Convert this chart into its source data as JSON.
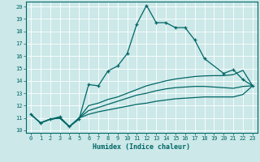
{
  "xlabel": "Humidex (Indice chaleur)",
  "bg_color": "#cce8e8",
  "line_color": "#006666",
  "grid_color": "#ffffff",
  "xlim": [
    -0.5,
    23.5
  ],
  "ylim": [
    9.8,
    20.4
  ],
  "yticks": [
    10,
    11,
    12,
    13,
    14,
    15,
    16,
    17,
    18,
    19,
    20
  ],
  "xticks": [
    0,
    1,
    2,
    3,
    4,
    5,
    6,
    7,
    8,
    9,
    10,
    11,
    12,
    13,
    14,
    15,
    16,
    17,
    18,
    19,
    20,
    21,
    22,
    23
  ],
  "line1_x": [
    0,
    1,
    2,
    3,
    4,
    5,
    6,
    7,
    8,
    9,
    10,
    11,
    12,
    13,
    14,
    15,
    16,
    17,
    18,
    20,
    21,
    22,
    23
  ],
  "line1_y": [
    11.3,
    10.6,
    10.9,
    11.1,
    10.3,
    10.9,
    13.7,
    13.6,
    14.8,
    15.2,
    16.2,
    18.6,
    20.1,
    18.7,
    18.7,
    18.3,
    18.3,
    17.3,
    15.8,
    14.6,
    14.9,
    14.1,
    13.6
  ],
  "line2_x": [
    0,
    1,
    2,
    3,
    4,
    5,
    6,
    7,
    8,
    9,
    10,
    11,
    12,
    13,
    14,
    15,
    16,
    17,
    18,
    19,
    20,
    21,
    22,
    23
  ],
  "line2_y": [
    11.3,
    10.6,
    10.9,
    11.0,
    10.3,
    11.0,
    12.0,
    12.2,
    12.5,
    12.7,
    13.0,
    13.3,
    13.6,
    13.8,
    14.0,
    14.15,
    14.25,
    14.35,
    14.4,
    14.42,
    14.42,
    14.5,
    14.85,
    13.6
  ],
  "line3_x": [
    0,
    1,
    2,
    3,
    4,
    5,
    6,
    7,
    8,
    9,
    10,
    11,
    12,
    13,
    14,
    15,
    16,
    17,
    18,
    19,
    20,
    21,
    22,
    23
  ],
  "line3_y": [
    11.3,
    10.6,
    10.9,
    11.0,
    10.3,
    11.0,
    11.6,
    11.85,
    12.1,
    12.35,
    12.6,
    12.85,
    13.0,
    13.2,
    13.35,
    13.45,
    13.5,
    13.55,
    13.55,
    13.5,
    13.45,
    13.4,
    13.55,
    13.6
  ],
  "line4_x": [
    0,
    1,
    2,
    3,
    4,
    5,
    6,
    7,
    8,
    9,
    10,
    11,
    12,
    13,
    14,
    15,
    16,
    17,
    18,
    19,
    20,
    21,
    22,
    23
  ],
  "line4_y": [
    11.3,
    10.6,
    10.9,
    11.0,
    10.3,
    11.0,
    11.3,
    11.5,
    11.65,
    11.8,
    11.95,
    12.1,
    12.2,
    12.35,
    12.45,
    12.55,
    12.6,
    12.65,
    12.7,
    12.7,
    12.7,
    12.7,
    12.9,
    13.6
  ]
}
